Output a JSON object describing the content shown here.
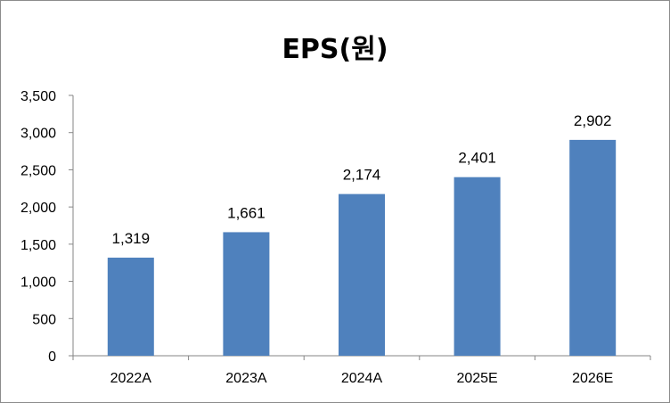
{
  "chart_data": {
    "type": "bar",
    "title": "EPS(원)",
    "categories": [
      "2022A",
      "2023A",
      "2024A",
      "2025E",
      "2026E"
    ],
    "series": [
      {
        "values": [
          1319,
          1661,
          2174,
          2401,
          2902
        ]
      }
    ],
    "data_labels": [
      "1,319",
      "1,661",
      "2,174",
      "2,401",
      "2,902"
    ],
    "yticks": [
      "0",
      "500",
      "1,000",
      "1,500",
      "2,000",
      "2,500",
      "3,000",
      "3,500"
    ],
    "ylim": [
      0,
      3500
    ],
    "xlabel": "",
    "ylabel": "",
    "grid": false,
    "bar_color": "#4F81BD"
  }
}
